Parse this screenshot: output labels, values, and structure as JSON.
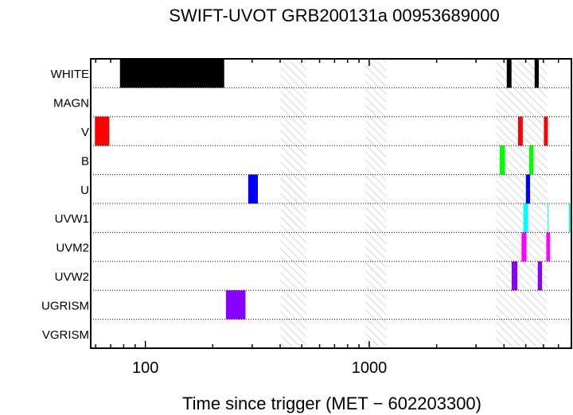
{
  "chart_data": {
    "type": "timeline",
    "title": "SWIFT-UVOT GRB200131a 00953689000",
    "xlabel": "Time since trigger (MET − 602203300)",
    "ylabel": "",
    "x_scale": "log",
    "xlim": [
      57,
      8000
    ],
    "x_tick_labels": [
      {
        "value": 100,
        "label": "100"
      },
      {
        "value": 1000,
        "label": "1000"
      }
    ],
    "rows": [
      "WHITE",
      "MAGN",
      "V",
      "B",
      "U",
      "UVW1",
      "UVM2",
      "UVW2",
      "UGRISM",
      "VGRISM"
    ],
    "no_data_intervals": [
      [
        402,
        525
      ],
      [
        960,
        1190
      ],
      [
        3680,
        6250
      ]
    ],
    "exposures": [
      {
        "filter": "WHITE",
        "start": 77,
        "end": 225,
        "color": "#000000"
      },
      {
        "filter": "WHITE",
        "start": 4115,
        "end": 4320,
        "color": "#000000"
      },
      {
        "filter": "WHITE",
        "start": 5480,
        "end": 5720,
        "color": "#000000"
      },
      {
        "filter": "V",
        "start": 59.5,
        "end": 69,
        "color": "#ff0000"
      },
      {
        "filter": "V",
        "start": 4620,
        "end": 4850,
        "color": "#ff0000"
      },
      {
        "filter": "V",
        "start": 6030,
        "end": 6280,
        "color": "#ff0000"
      },
      {
        "filter": "B",
        "start": 3830,
        "end": 4040,
        "color": "#00ff00"
      },
      {
        "filter": "B",
        "start": 5180,
        "end": 5420,
        "color": "#00ff00"
      },
      {
        "filter": "U",
        "start": 288,
        "end": 318,
        "color": "#0000ff"
      },
      {
        "filter": "U",
        "start": 5010,
        "end": 5230,
        "color": "#0000ff"
      },
      {
        "filter": "UVW1",
        "start": 4880,
        "end": 5120,
        "color": "#00ffff"
      },
      {
        "filter": "UVW1",
        "start": 6265,
        "end": 6300,
        "color": "#00ffff"
      },
      {
        "filter": "UVW1",
        "start": 7800,
        "end": 8000,
        "color": "#00ffff"
      },
      {
        "filter": "UVM2",
        "start": 4790,
        "end": 5040,
        "color": "#ff00ff"
      },
      {
        "filter": "UVM2",
        "start": 6180,
        "end": 6420,
        "color": "#ff00ff"
      },
      {
        "filter": "UVW2",
        "start": 4330,
        "end": 4590,
        "color": "#8800ff"
      },
      {
        "filter": "UVW2",
        "start": 5660,
        "end": 5910,
        "color": "#8800ff"
      },
      {
        "filter": "UGRISM",
        "start": 229,
        "end": 280,
        "color": "#8800ff"
      }
    ],
    "grid": {
      "row_separators": "dotted",
      "vertical": false
    }
  }
}
